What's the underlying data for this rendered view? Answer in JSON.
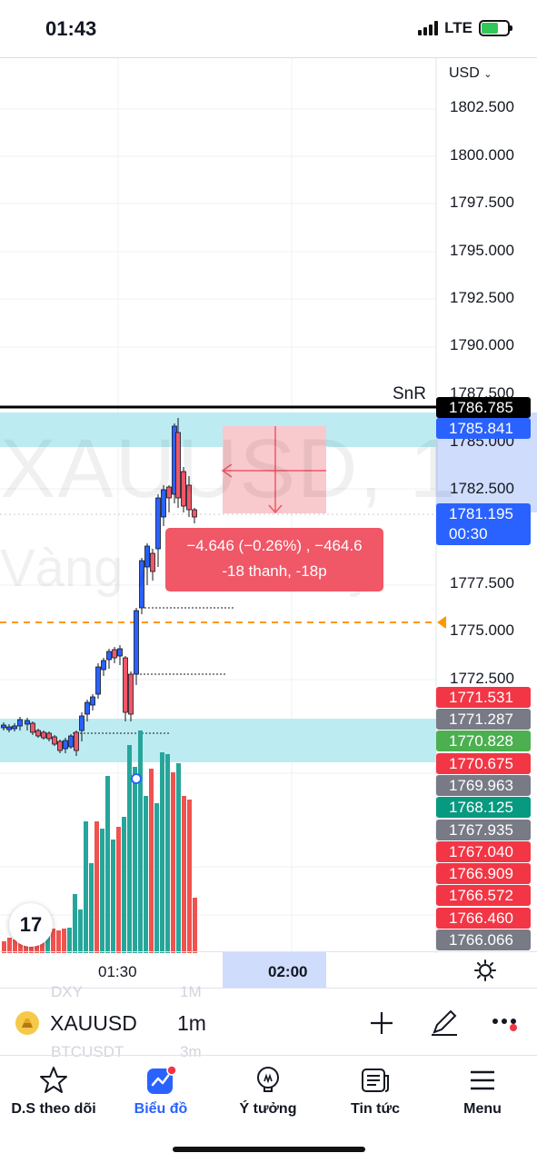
{
  "status_bar": {
    "time": "01:43",
    "network": "LTE"
  },
  "chart": {
    "currency": "USD",
    "currency_chevron_icon": "chevron-down-icon",
    "price_axis_labels": [
      "1802.500",
      "1800.000",
      "1797.500",
      "1795.000",
      "1792.500",
      "1790.000",
      "1787.500",
      "1785.000",
      "1782.500",
      "1777.500",
      "1775.000",
      "1772.500"
    ],
    "current_price": "1781.195",
    "countdown": "00:30",
    "snr_label": "SnR",
    "price_tags": [
      {
        "value": "1786.785",
        "color": "#000000"
      },
      {
        "value": "1785.841",
        "color": "#2962ff"
      },
      {
        "value": "1771.531",
        "color": "#f23645"
      },
      {
        "value": "1771.287",
        "color": "#787b86"
      },
      {
        "value": "1770.828",
        "color": "#4caf50"
      },
      {
        "value": "1770.675",
        "color": "#f23645"
      },
      {
        "value": "1769.963",
        "color": "#787b86"
      },
      {
        "value": "1768.125",
        "color": "#089981"
      },
      {
        "value": "1767.935",
        "color": "#787b86"
      },
      {
        "value": "1767.040",
        "color": "#f23645"
      },
      {
        "value": "1766.909",
        "color": "#f23645"
      },
      {
        "value": "1766.572",
        "color": "#f23645"
      },
      {
        "value": "1766.460",
        "color": "#f23645"
      },
      {
        "value": "1766.066",
        "color": "#787b86"
      }
    ],
    "watermark_symbol": "XAUUSD, 1",
    "watermark_desc": "Vàng / Đô la Mỹ",
    "measure_line1": "−4.646 (−0.26%) , −464.6",
    "measure_line2": "-18 thanh, -18p",
    "time_labels": [
      "01:30",
      "02:00"
    ]
  },
  "symbol_bar": {
    "ghost_items": [
      {
        "symbol": "DXY",
        "interval": "1M"
      },
      {
        "symbol": "BTCUSDT",
        "interval": "3m"
      }
    ],
    "symbol": "XAUUSD",
    "interval": "1m"
  },
  "bottom_nav": {
    "items": [
      {
        "label": "D.S theo dõi",
        "icon": "star-icon"
      },
      {
        "label": "Biểu đồ",
        "icon": "chart-icon"
      },
      {
        "label": "Ý tưởng",
        "icon": "lightbulb-icon"
      },
      {
        "label": "Tin tức",
        "icon": "news-icon"
      },
      {
        "label": "Menu",
        "icon": "menu-icon"
      }
    ]
  },
  "colors": {
    "up": "#2962ff",
    "down": "#f05767",
    "vol_up": "#26a69a",
    "vol_down": "#ef5350",
    "accent": "#2962ff"
  }
}
